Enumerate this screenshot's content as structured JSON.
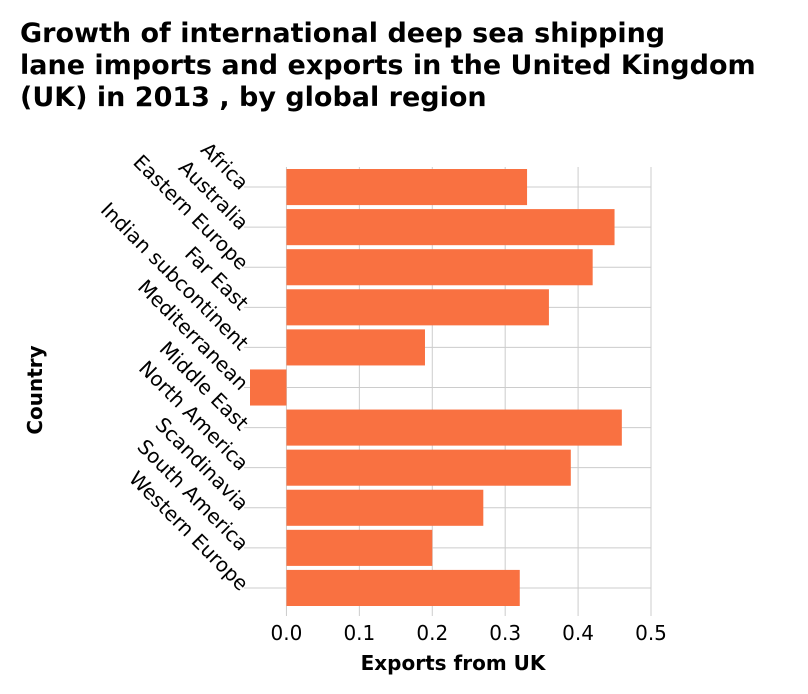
{
  "chart_data": {
    "type": "bar",
    "orientation": "horizontal",
    "title_lines": [
      "Growth of international deep sea shipping",
      "lane imports and exports in the United Kingdom",
      "(UK) in 2013 , by global region"
    ],
    "xlabel": "Exports from UK",
    "ylabel": "Country",
    "categories": [
      "Africa",
      "Australia",
      "Eastern Europe",
      "Far East",
      "Indian subcontinent",
      "Mediterranean",
      "Middle East",
      "North America",
      "Scandinavia",
      "South America",
      "Western Europe"
    ],
    "values": [
      0.33,
      0.45,
      0.42,
      0.36,
      0.19,
      -0.05,
      0.46,
      0.39,
      0.27,
      0.2,
      0.32
    ],
    "xlim": [
      -0.05,
      0.5
    ],
    "xticks": [
      "0.0",
      "0.1",
      "0.2",
      "0.3",
      "0.4",
      "0.5"
    ],
    "xtick_values": [
      0.0,
      0.1,
      0.2,
      0.3,
      0.4,
      0.5
    ],
    "grid": true,
    "bar_color": "#f97141",
    "grid_color": "#cccccc"
  }
}
